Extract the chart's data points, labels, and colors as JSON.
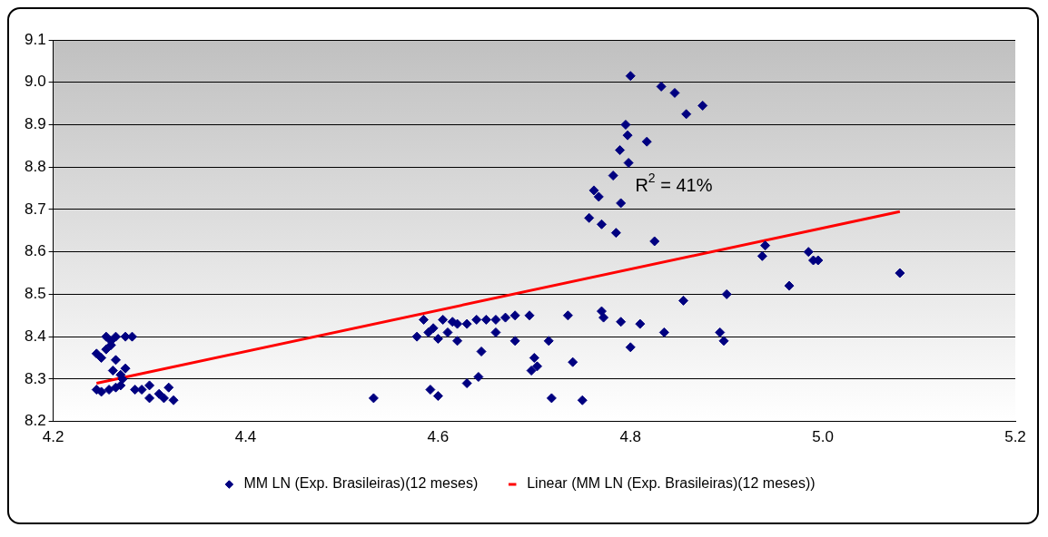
{
  "chart_data": {
    "type": "scatter",
    "xlim": [
      4.2,
      5.2
    ],
    "xticks": [
      4.2,
      4.4,
      4.6,
      4.8,
      {
        "value": 5,
        "label": "5.0"
      },
      5.2
    ],
    "ylim": [
      8.2,
      9.1
    ],
    "yticks": [
      8.2,
      8.3,
      8.4,
      8.5,
      8.6,
      8.7,
      8.8,
      8.9,
      {
        "value": 9,
        "label": "9.0"
      },
      9.1
    ],
    "grid": "y",
    "legend": "bottom",
    "annotations": [
      "R$^{2}$ = 41%"
    ],
    "series": [
      {
        "name": "MM LN (Exp. Brasileiras)(12 meses)",
        "marker": "diamond",
        "color": "#000080",
        "x": [
          4.245,
          4.25,
          4.255,
          4.26,
          4.255,
          4.265,
          4.275,
          4.282,
          4.26,
          4.265,
          4.262,
          4.27,
          4.275,
          4.272,
          4.245,
          4.25,
          4.258,
          4.265,
          4.27,
          4.285,
          4.292,
          4.3,
          4.3,
          4.31,
          4.315,
          4.32,
          4.325,
          4.533,
          4.578,
          4.585,
          4.59,
          4.595,
          4.6,
          4.605,
          4.61,
          4.615,
          4.62,
          4.62,
          4.63,
          4.64,
          4.645,
          4.65,
          4.66,
          4.66,
          4.67,
          4.68,
          4.68,
          4.695,
          4.7,
          4.697,
          4.703,
          4.715,
          4.735,
          4.74,
          4.592,
          4.6,
          4.63,
          4.642,
          4.718,
          4.75,
          4.8,
          4.832,
          4.846,
          4.875,
          4.858,
          4.795,
          4.797,
          4.817,
          4.789,
          4.798,
          4.782,
          4.762,
          4.767,
          4.79,
          4.757,
          4.77,
          4.785,
          4.825,
          4.77,
          4.772,
          4.79,
          4.81,
          4.855,
          4.8,
          4.835,
          4.893,
          4.897,
          4.9,
          4.94,
          4.937,
          4.985,
          4.99,
          4.995,
          4.965,
          5.08
        ],
        "values": [
          8.36,
          8.35,
          8.4,
          8.39,
          8.37,
          8.4,
          8.4,
          8.4,
          8.38,
          8.345,
          8.32,
          8.31,
          8.325,
          8.3,
          8.275,
          8.27,
          8.275,
          8.28,
          8.285,
          8.275,
          8.275,
          8.285,
          8.255,
          8.265,
          8.255,
          8.28,
          8.25,
          8.255,
          8.4,
          8.44,
          8.41,
          8.42,
          8.395,
          8.44,
          8.41,
          8.435,
          8.43,
          8.39,
          8.43,
          8.44,
          8.365,
          8.44,
          8.44,
          8.41,
          8.445,
          8.39,
          8.45,
          8.45,
          8.35,
          8.32,
          8.33,
          8.39,
          8.45,
          8.34,
          8.275,
          8.26,
          8.29,
          8.305,
          8.255,
          8.25,
          9.015,
          8.99,
          8.975,
          8.945,
          8.925,
          8.9,
          8.875,
          8.86,
          8.84,
          8.81,
          8.78,
          8.745,
          8.73,
          8.715,
          8.68,
          8.665,
          8.645,
          8.625,
          8.46,
          8.445,
          8.435,
          8.43,
          8.485,
          8.375,
          8.41,
          8.41,
          8.39,
          8.5,
          8.615,
          8.59,
          8.6,
          8.58,
          8.58,
          8.52,
          8.55
        ]
      },
      {
        "name": "Linear (MM LN (Exp. Brasileiras)(12 meses))",
        "type": "line",
        "marker": "none",
        "color": "#ff0000",
        "x": [
          4.245,
          5.08
        ],
        "values": [
          8.29,
          8.695
        ]
      }
    ]
  }
}
